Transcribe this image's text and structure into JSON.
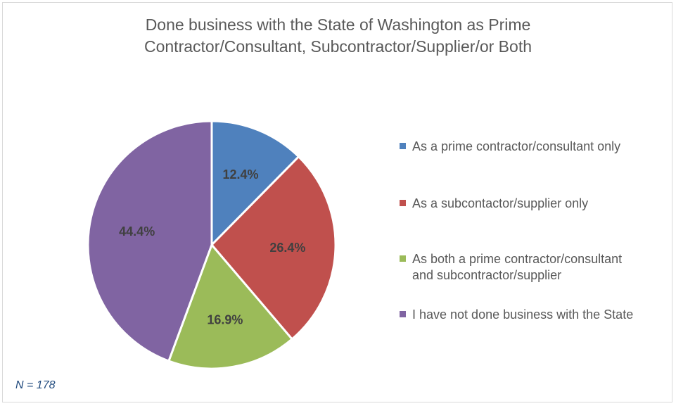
{
  "chart_data": {
    "type": "pie",
    "title": [
      "Done business with the State of Washington as Prime",
      "Contractor/Consultant, Subcontractor/Supplier/or Both"
    ],
    "slices": [
      {
        "label": "As a prime contractor/consultant only",
        "value": 12.4,
        "display": "12.4%",
        "color": "#4f81bd"
      },
      {
        "label": "As a subcontactor/supplier only",
        "value": 26.4,
        "display": "26.4%",
        "color": "#c0504d"
      },
      {
        "label": "As both a prime contractor/consultant and subcontractor/supplier",
        "label_lines": [
          "As both a prime contractor/consultant",
          "and subcontractor/supplier"
        ],
        "value": 16.9,
        "display": "16.9%",
        "color": "#9bbb59"
      },
      {
        "label": "I have not done business with the State",
        "value": 44.4,
        "display": "44.4%",
        "color": "#8064a2"
      }
    ],
    "legend_position": "right",
    "note": "N = 178"
  }
}
